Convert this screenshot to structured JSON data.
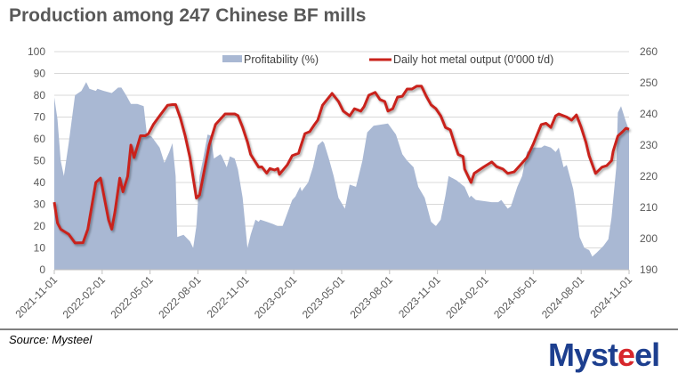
{
  "title": "Production among 247 Chinese BF mills",
  "source": "Source: Mysteel",
  "logo": {
    "text": "Mysteel",
    "part1": "Myst",
    "part2": "e",
    "part3": "el"
  },
  "colors": {
    "area": "#a9b8d3",
    "line": "#c9221b",
    "grid": "#d9d9d9",
    "axis_text": "#595959"
  },
  "chart_data": {
    "type": "area+line",
    "title": "Production among 247 Chinese BF mills",
    "x_unit": "months since 2021-11-01",
    "x_tick_labels": [
      "2021-11-01",
      "2022-02-01",
      "2022-05-01",
      "2022-08-01",
      "2022-11-01",
      "2023-02-01",
      "2023-05-01",
      "2023-08-01",
      "2023-11-01",
      "2024-02-01",
      "2024-05-01",
      "2024-08-01",
      "2024-11-01"
    ],
    "xlim": [
      0,
      36
    ],
    "y_left": {
      "ylim": [
        0,
        100
      ],
      "ticks": [
        "0",
        "10",
        "20",
        "30",
        "40",
        "50",
        "60",
        "70",
        "80",
        "90",
        "100"
      ]
    },
    "y_right": {
      "ylim": [
        190,
        260
      ],
      "ticks": [
        "190",
        "200",
        "210",
        "220",
        "230",
        "240",
        "250",
        "260"
      ]
    },
    "legend_position": "top",
    "grid": true,
    "series": [
      {
        "name": "Profitability (%)",
        "type": "area",
        "axis": "left",
        "points": [
          [
            0,
            79
          ],
          [
            0.2,
            69
          ],
          [
            0.4,
            50
          ],
          [
            0.6,
            43
          ],
          [
            0.9,
            58
          ],
          [
            1.3,
            80
          ],
          [
            1.7,
            82
          ],
          [
            2.0,
            86
          ],
          [
            2.2,
            83
          ],
          [
            2.6,
            82
          ],
          [
            2.7,
            83
          ],
          [
            3.1,
            82
          ],
          [
            3.6,
            81
          ],
          [
            4.0,
            83.5
          ],
          [
            4.2,
            83.5
          ],
          [
            4.5,
            80
          ],
          [
            4.8,
            76
          ],
          [
            5.2,
            76
          ],
          [
            5.6,
            75
          ],
          [
            5.8,
            62
          ],
          [
            6.1,
            61
          ],
          [
            6.4,
            58
          ],
          [
            6.6,
            56
          ],
          [
            6.9,
            49
          ],
          [
            7.2,
            54
          ],
          [
            7.4,
            58
          ],
          [
            7.6,
            43
          ],
          [
            7.7,
            15
          ],
          [
            8.1,
            16
          ],
          [
            8.5,
            13
          ],
          [
            8.7,
            10
          ],
          [
            8.9,
            20
          ],
          [
            9.1,
            43
          ],
          [
            9.3,
            50
          ],
          [
            9.6,
            62
          ],
          [
            9.8,
            61.5
          ],
          [
            10.0,
            51
          ],
          [
            10.4,
            53
          ],
          [
            10.5,
            52
          ],
          [
            10.8,
            47
          ],
          [
            11.0,
            52
          ],
          [
            11.3,
            51
          ],
          [
            11.5,
            46
          ],
          [
            11.8,
            33
          ],
          [
            12.1,
            10
          ],
          [
            12.3,
            16
          ],
          [
            12.6,
            23
          ],
          [
            12.8,
            22
          ],
          [
            12.9,
            23
          ],
          [
            13.3,
            22
          ],
          [
            13.7,
            21
          ],
          [
            14.0,
            20
          ],
          [
            14.3,
            20
          ],
          [
            14.5,
            24
          ],
          [
            14.9,
            32
          ],
          [
            15.1,
            33.6
          ],
          [
            15.4,
            38
          ],
          [
            15.5,
            36
          ],
          [
            15.9,
            40
          ],
          [
            16.2,
            47
          ],
          [
            16.5,
            57
          ],
          [
            16.8,
            59
          ],
          [
            16.9,
            58
          ],
          [
            17.2,
            51
          ],
          [
            17.5,
            43
          ],
          [
            17.8,
            33
          ],
          [
            18.2,
            28
          ],
          [
            18.5,
            39
          ],
          [
            18.9,
            38
          ],
          [
            19.3,
            50
          ],
          [
            19.6,
            63
          ],
          [
            20.0,
            66
          ],
          [
            20.9,
            67
          ],
          [
            21.4,
            62
          ],
          [
            21.8,
            53
          ],
          [
            22.1,
            50
          ],
          [
            22.5,
            47
          ],
          [
            22.8,
            38
          ],
          [
            23.2,
            33
          ],
          [
            23.6,
            22
          ],
          [
            23.9,
            20
          ],
          [
            24.2,
            23
          ],
          [
            24.5,
            34
          ],
          [
            24.7,
            43
          ],
          [
            25.2,
            41
          ],
          [
            25.7,
            38
          ],
          [
            26.0,
            33
          ],
          [
            26.1,
            34
          ],
          [
            26.4,
            32
          ],
          [
            27.4,
            31
          ],
          [
            27.8,
            31
          ],
          [
            28.0,
            32
          ],
          [
            28.4,
            28
          ],
          [
            28.6,
            29
          ],
          [
            29.0,
            38
          ],
          [
            29.3,
            43
          ],
          [
            29.6,
            54
          ],
          [
            30.0,
            56
          ],
          [
            30.5,
            56
          ],
          [
            30.7,
            57
          ],
          [
            31.1,
            56
          ],
          [
            31.4,
            54
          ],
          [
            31.6,
            56
          ],
          [
            31.9,
            47
          ],
          [
            32.1,
            48
          ],
          [
            32.5,
            37
          ],
          [
            32.7,
            27
          ],
          [
            32.9,
            15
          ],
          [
            33.2,
            10
          ],
          [
            33.5,
            9
          ],
          [
            33.7,
            6
          ],
          [
            34.0,
            8
          ],
          [
            34.4,
            11
          ],
          [
            34.7,
            14
          ],
          [
            34.9,
            24
          ],
          [
            35.2,
            47
          ],
          [
            35.3,
            72
          ],
          [
            35.5,
            75
          ],
          [
            35.8,
            68
          ],
          [
            36.0,
            64
          ]
        ]
      },
      {
        "name": "Daily hot metal output (0'000 t/d)",
        "type": "line",
        "axis": "right",
        "points": [
          [
            0,
            211.7
          ],
          [
            0.2,
            205
          ],
          [
            0.4,
            203
          ],
          [
            0.9,
            201.4
          ],
          [
            1.3,
            198.6
          ],
          [
            1.8,
            198.7
          ],
          [
            2.1,
            203
          ],
          [
            2.6,
            218
          ],
          [
            2.9,
            219.4
          ],
          [
            3.4,
            206
          ],
          [
            3.6,
            203
          ],
          [
            3.8,
            208.6
          ],
          [
            4.1,
            219.4
          ],
          [
            4.3,
            215
          ],
          [
            4.6,
            220
          ],
          [
            4.8,
            230
          ],
          [
            5.0,
            226
          ],
          [
            5.4,
            233
          ],
          [
            5.7,
            233
          ],
          [
            5.9,
            233.7
          ],
          [
            6.2,
            236.6
          ],
          [
            6.6,
            239.4
          ],
          [
            7.1,
            242.8
          ],
          [
            7.4,
            243
          ],
          [
            7.6,
            243
          ],
          [
            7.9,
            238.6
          ],
          [
            8.2,
            233
          ],
          [
            8.5,
            226
          ],
          [
            8.9,
            213
          ],
          [
            9.1,
            214
          ],
          [
            9.4,
            222
          ],
          [
            9.7,
            230
          ],
          [
            10.1,
            236.6
          ],
          [
            10.7,
            240
          ],
          [
            11.3,
            240
          ],
          [
            11.5,
            239.5
          ],
          [
            11.8,
            235.7
          ],
          [
            12.1,
            231
          ],
          [
            12.3,
            227
          ],
          [
            12.8,
            222.9
          ],
          [
            13.0,
            223
          ],
          [
            13.3,
            221
          ],
          [
            13.5,
            222.5
          ],
          [
            13.8,
            222
          ],
          [
            14.0,
            222.5
          ],
          [
            14.1,
            220.6
          ],
          [
            14.6,
            223.7
          ],
          [
            14.9,
            226.6
          ],
          [
            15.3,
            227.4
          ],
          [
            15.4,
            229
          ],
          [
            15.7,
            233.7
          ],
          [
            16.0,
            234.3
          ],
          [
            16.3,
            236.6
          ],
          [
            16.5,
            238
          ],
          [
            16.8,
            242.8
          ],
          [
            17.4,
            246.6
          ],
          [
            17.8,
            244
          ],
          [
            18.1,
            240.9
          ],
          [
            18.5,
            239.4
          ],
          [
            18.8,
            241.7
          ],
          [
            19.2,
            240.9
          ],
          [
            19.4,
            242.3
          ],
          [
            19.7,
            246
          ],
          [
            20.1,
            246.9
          ],
          [
            20.4,
            244.6
          ],
          [
            20.7,
            244
          ],
          [
            20.9,
            240.9
          ],
          [
            21.2,
            241.7
          ],
          [
            21.5,
            245.4
          ],
          [
            21.8,
            245.7
          ],
          [
            22.1,
            248
          ],
          [
            22.4,
            248
          ],
          [
            22.7,
            248.9
          ],
          [
            23.0,
            248.9
          ],
          [
            23.3,
            245.7
          ],
          [
            23.6,
            242.9
          ],
          [
            23.9,
            241.7
          ],
          [
            24.2,
            239.4
          ],
          [
            24.5,
            235.7
          ],
          [
            24.8,
            234.9
          ],
          [
            25.1,
            230
          ],
          [
            25.3,
            227
          ],
          [
            25.6,
            226.3
          ],
          [
            25.7,
            222.3
          ],
          [
            26.1,
            218
          ],
          [
            26.3,
            220.9
          ],
          [
            26.9,
            223
          ],
          [
            27.4,
            224.6
          ],
          [
            27.7,
            223.1
          ],
          [
            28.1,
            222.3
          ],
          [
            28.4,
            220.9
          ],
          [
            28.8,
            221.4
          ],
          [
            29.2,
            223.7
          ],
          [
            29.6,
            226
          ],
          [
            30.0,
            230.3
          ],
          [
            30.5,
            236.6
          ],
          [
            30.8,
            237
          ],
          [
            31.1,
            235.7
          ],
          [
            31.4,
            239.4
          ],
          [
            31.6,
            240
          ],
          [
            31.9,
            239.4
          ],
          [
            32.1,
            239
          ],
          [
            32.4,
            238
          ],
          [
            32.7,
            239.7
          ],
          [
            33.0,
            235.7
          ],
          [
            33.3,
            230.9
          ],
          [
            33.5,
            226.6
          ],
          [
            33.9,
            220.9
          ],
          [
            34.3,
            222.9
          ],
          [
            34.6,
            223.4
          ],
          [
            34.9,
            225
          ],
          [
            35.0,
            228
          ],
          [
            35.3,
            232.9
          ],
          [
            35.6,
            234.3
          ],
          [
            35.8,
            235.4
          ],
          [
            36.0,
            235.1
          ]
        ]
      }
    ]
  }
}
